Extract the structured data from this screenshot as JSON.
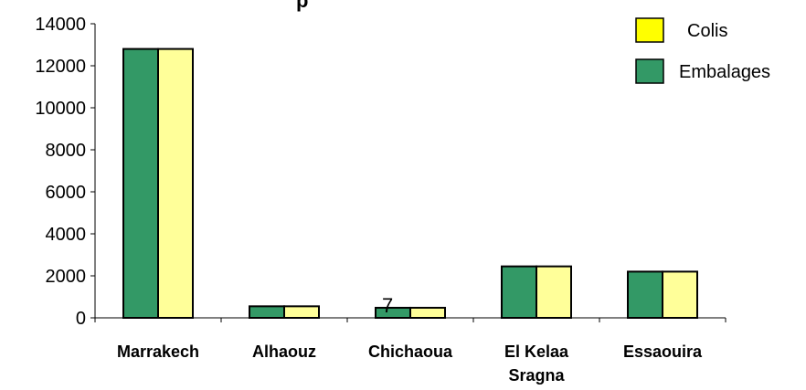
{
  "chart_data": {
    "type": "bar",
    "title": "p",
    "categories": [
      [
        "Marrakech"
      ],
      [
        "Alhaouz"
      ],
      [
        "Chichaoua"
      ],
      [
        "El Kelaa",
        "Sragna"
      ],
      [
        "Essaouira"
      ]
    ],
    "series": [
      {
        "name": "Embalages",
        "color": "#339966",
        "values": [
          12800,
          550,
          480,
          2450,
          2200
        ]
      },
      {
        "name": "Colis",
        "color": "#FFFF99",
        "values": [
          12800,
          550,
          480,
          2450,
          2200
        ]
      }
    ],
    "legend": [
      {
        "name": "Colis",
        "color": "#FFFF00"
      },
      {
        "name": "Embalages",
        "color": "#339966"
      }
    ],
    "yticks": [
      "0",
      "2000",
      "4000",
      "6000",
      "8000",
      "10000",
      "12000",
      "14000"
    ],
    "ylim": [
      0,
      14000
    ],
    "annotations": [
      {
        "text": "7",
        "category": 2
      }
    ],
    "grid": false,
    "legend_position": "top-right"
  }
}
